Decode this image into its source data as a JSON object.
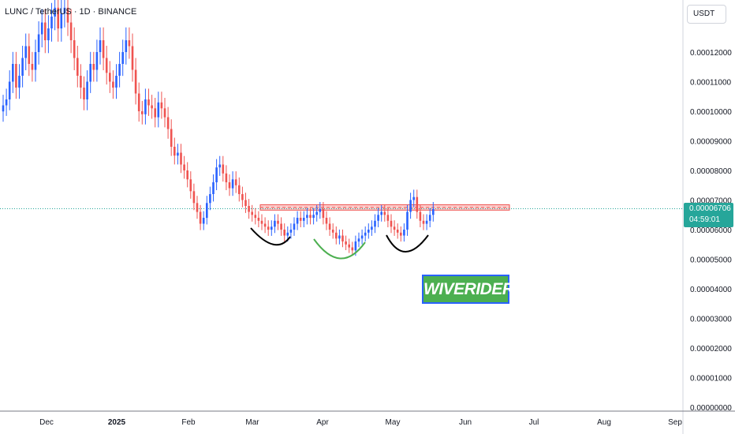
{
  "header": {
    "symbol": "LUNC / TetherUS · 1D · BINANCE"
  },
  "currency": "USDT",
  "last_price": {
    "value": "0.00006706",
    "countdown": "04:59:01"
  },
  "brand": "WIVERIDERS",
  "colors": {
    "up": "#2962ff",
    "down": "#ef5350",
    "resistance": "#ef5350",
    "last_price": "#26a69a",
    "brand_bg": "#4caf50"
  },
  "chart_data": {
    "type": "candlestick",
    "title": "LUNC / TetherUS · 1D · BINANCE",
    "x_ticks": [
      "Dec",
      "2025",
      "Feb",
      "Mar",
      "Apr",
      "May",
      "Jun",
      "Jul",
      "Aug",
      "Sep"
    ],
    "y_ticks": [
      "0.00012000",
      "0.00011000",
      "0.00010000",
      "0.00009000",
      "0.00008000",
      "0.00007000",
      "0.00006000",
      "0.00005000",
      "0.00004000",
      "0.00003000",
      "0.00002000",
      "0.00001000",
      "0.00000000"
    ],
    "ylim": [
      0,
      0.000136
    ],
    "resistance_zone": [
      6.66e-05,
      6.84e-05
    ],
    "last_price": 6.706e-05,
    "annotations": [
      "left shoulder",
      "head",
      "right shoulder"
    ],
    "series": [
      {
        "name": "LUNC/USDT daily",
        "close": [
          0.000102,
          0.000104,
          0.00011,
          0.000116,
          0.000108,
          0.000112,
          0.000118,
          0.000122,
          0.000116,
          0.000114,
          0.00012,
          0.000126,
          0.00013,
          0.000124,
          0.000128,
          0.000132,
          0.000135,
          0.000128,
          0.000133,
          0.000135,
          0.00013,
          0.000124,
          0.000118,
          0.000112,
          0.000108,
          0.000104,
          0.00011,
          0.000116,
          0.000114,
          0.00012,
          0.000124,
          0.000118,
          0.000113,
          0.00011,
          0.000108,
          0.000112,
          0.000116,
          0.00012,
          0.000124,
          0.000122,
          0.000114,
          0.000106,
          0.0001,
          9.9e-05,
          0.000104,
          0.000102,
          0.000101,
          9.8e-05,
          0.000103,
          0.000101,
          9.8e-05,
          9.4e-05,
          8.8e-05,
          8.5e-05,
          8.6e-05,
          8.2e-05,
          8e-05,
          7.7e-05,
          7.3e-05,
          6.9e-05,
          6.6e-05,
          6.2e-05,
          6.4e-05,
          6.9e-05,
          7.2e-05,
          7.6e-05,
          8.1e-05,
          8.2e-05,
          7.9e-05,
          7.6e-05,
          7.4e-05,
          7.7e-05,
          7.5e-05,
          7.2e-05,
          7e-05,
          6.8e-05,
          6.6e-05,
          6.5e-05,
          6.4e-05,
          6.3e-05,
          6.2e-05,
          6.1e-05,
          6e-05,
          6.1e-05,
          6.3e-05,
          6.2e-05,
          6e-05,
          5.8e-05,
          5.9e-05,
          6e-05,
          6.2e-05,
          6.4e-05,
          6.3e-05,
          6.4e-05,
          6.5e-05,
          6.4e-05,
          6.5e-05,
          6.6e-05,
          6.7e-05,
          6.4e-05,
          6.2e-05,
          6e-05,
          5.9e-05,
          5.7e-05,
          5.8e-05,
          5.6e-05,
          5.5e-05,
          5.4e-05,
          5.3e-05,
          5.6e-05,
          5.7e-05,
          5.8e-05,
          5.9e-05,
          6e-05,
          6.1e-05,
          6.3e-05,
          6.5e-05,
          6.6e-05,
          6.5e-05,
          6.3e-05,
          6.1e-05,
          6e-05,
          5.9e-05,
          5.8e-05,
          6e-05,
          6.6e-05,
          7e-05,
          7.1e-05,
          6.6e-05,
          6.3e-05,
          6.2e-05,
          6.3e-05,
          6.5e-05,
          6.7e-05
        ]
      }
    ]
  }
}
